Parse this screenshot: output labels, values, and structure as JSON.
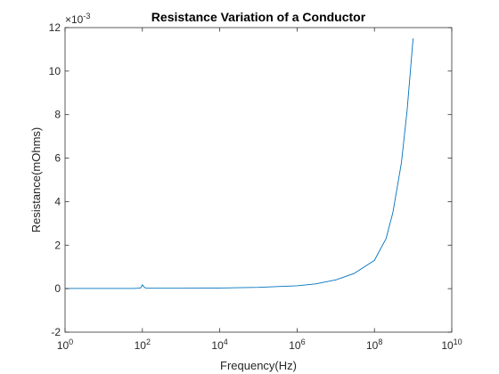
{
  "chart_data": {
    "type": "line",
    "title": "Resistance Variation of a Conductor",
    "xlabel": "Frequency(Hz)",
    "ylabel": "Resistance(mOhms)",
    "x_scale": "log",
    "xlim": [
      1,
      10000000000
    ],
    "ylim": [
      -0.002,
      0.012
    ],
    "y_multiplier_label": "×10",
    "y_multiplier_exponent": "-3",
    "x_ticks": [
      {
        "value": 1,
        "base": "10",
        "exp": "0"
      },
      {
        "value": 100,
        "base": "10",
        "exp": "2"
      },
      {
        "value": 10000,
        "base": "10",
        "exp": "4"
      },
      {
        "value": 1000000,
        "base": "10",
        "exp": "6"
      },
      {
        "value": 100000000,
        "base": "10",
        "exp": "8"
      },
      {
        "value": 10000000000,
        "base": "10",
        "exp": "10"
      }
    ],
    "y_ticks": [
      {
        "value": -0.002,
        "label": "-2"
      },
      {
        "value": 0,
        "label": "0"
      },
      {
        "value": 0.002,
        "label": "2"
      },
      {
        "value": 0.004,
        "label": "4"
      },
      {
        "value": 0.006,
        "label": "6"
      },
      {
        "value": 0.008,
        "label": "8"
      },
      {
        "value": 0.01,
        "label": "10"
      },
      {
        "value": 0.012,
        "label": "12"
      }
    ],
    "grid": false,
    "line_color": "#0072BD",
    "series": [
      {
        "x": [
          1,
          10,
          60,
          90,
          100,
          110,
          120,
          150,
          1000,
          10000,
          100000,
          1000000,
          3000000,
          10000000,
          30000000,
          100000000,
          200000000,
          300000000,
          500000000,
          700000000,
          1000000000
        ],
        "y": [
          1e-05,
          1e-05,
          1e-05,
          3e-05,
          0.00018,
          8e-05,
          3e-05,
          2e-05,
          2e-05,
          3e-05,
          6e-05,
          0.00013,
          0.00022,
          0.0004,
          0.0007,
          0.0013,
          0.0023,
          0.0035,
          0.0058,
          0.0082,
          0.0115
        ]
      }
    ]
  }
}
